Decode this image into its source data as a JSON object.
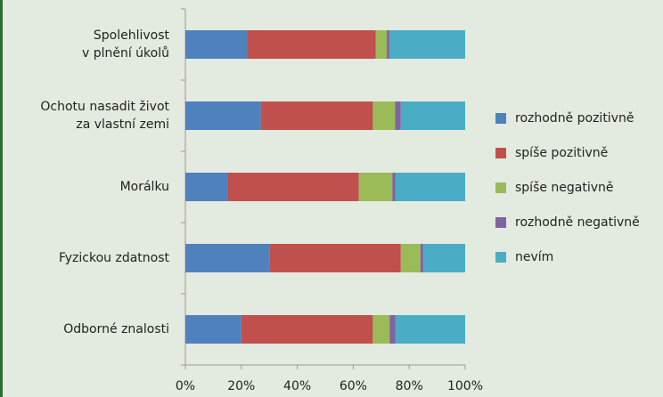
{
  "chart_data": {
    "type": "stacked-barh",
    "categories": [
      "Spolehlivost\nv plnění úkolů",
      "Ochotu nasadit život\nza vlastní zemi",
      "Morálku",
      "Fyzickou zdatnost",
      "Odborné znalosti"
    ],
    "series": [
      {
        "name": "rozhodně pozitivně",
        "color": "#4f81bd",
        "values": [
          22,
          27,
          15,
          30,
          20
        ]
      },
      {
        "name": "spíše pozitivně",
        "color": "#c0504d",
        "values": [
          46,
          40,
          47,
          47,
          47
        ]
      },
      {
        "name": "spíše negativně",
        "color": "#9bbb59",
        "values": [
          4,
          8,
          12,
          7,
          6
        ]
      },
      {
        "name": "rozhodně negativně",
        "color": "#8064a2",
        "values": [
          1,
          2,
          1,
          1,
          2
        ]
      },
      {
        "name": "nevím",
        "color": "#4bacc6",
        "values": [
          27,
          23,
          25,
          15,
          25
        ]
      }
    ],
    "xlim": [
      0,
      100
    ],
    "xticks": [
      {
        "value": 0,
        "label": "0%"
      },
      {
        "value": 20,
        "label": "20%"
      },
      {
        "value": 40,
        "label": "40%"
      },
      {
        "value": 60,
        "label": "60%"
      },
      {
        "value": 80,
        "label": "80%"
      },
      {
        "value": 100,
        "label": "100%"
      }
    ],
    "legend": "right"
  }
}
